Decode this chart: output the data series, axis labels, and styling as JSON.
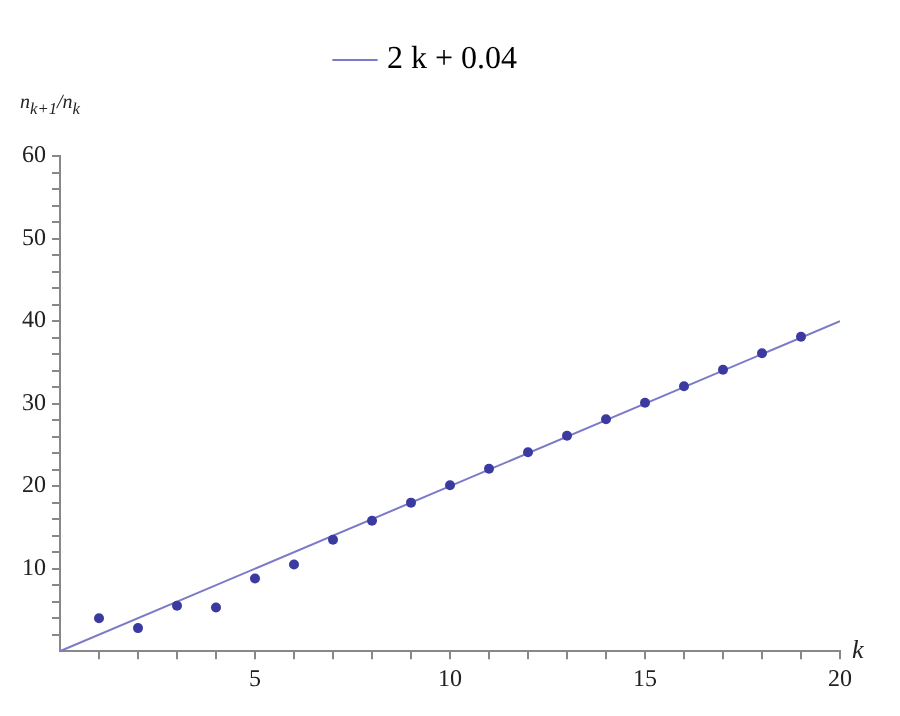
{
  "chart_data": {
    "type": "scatter",
    "xlabel": "k",
    "ylabel": "n$_{k+1}$/n$_{k}$",
    "xlim": [
      0,
      20
    ],
    "ylim": [
      0,
      60
    ],
    "xticks": [
      {
        "value": 1,
        "label": null
      },
      {
        "value": 2,
        "label": null
      },
      {
        "value": 3,
        "label": null
      },
      {
        "value": 4,
        "label": null
      },
      5,
      {
        "value": 6,
        "label": null
      },
      {
        "value": 7,
        "label": null
      },
      {
        "value": 8,
        "label": null
      },
      {
        "value": 9,
        "label": null
      },
      10,
      {
        "value": 11,
        "label": null
      },
      {
        "value": 12,
        "label": null
      },
      {
        "value": 13,
        "label": null
      },
      {
        "value": 14,
        "label": null
      },
      15,
      {
        "value": 16,
        "label": null
      },
      {
        "value": 17,
        "label": null
      },
      {
        "value": 18,
        "label": null
      },
      {
        "value": 19,
        "label": null
      },
      20
    ],
    "yticks": [
      {
        "value": 2,
        "label": null
      },
      {
        "value": 4,
        "label": null
      },
      {
        "value": 6,
        "label": null
      },
      {
        "value": 8,
        "label": null
      },
      10,
      {
        "value": 12,
        "label": null
      },
      {
        "value": 14,
        "label": null
      },
      {
        "value": 16,
        "label": null
      },
      {
        "value": 18,
        "label": null
      },
      20,
      {
        "value": 22,
        "label": null
      },
      {
        "value": 24,
        "label": null
      },
      {
        "value": 26,
        "label": null
      },
      {
        "value": 28,
        "label": null
      },
      30,
      {
        "value": 32,
        "label": null
      },
      {
        "value": 34,
        "label": null
      },
      {
        "value": 36,
        "label": null
      },
      {
        "value": 38,
        "label": null
      },
      40,
      {
        "value": 42,
        "label": null
      },
      {
        "value": 44,
        "label": null
      },
      {
        "value": 46,
        "label": null
      },
      {
        "value": 48,
        "label": null
      },
      50,
      {
        "value": 52,
        "label": null
      },
      {
        "value": 54,
        "label": null
      },
      {
        "value": 56,
        "label": null
      },
      {
        "value": 58,
        "label": null
      },
      60
    ],
    "grid": false,
    "legend": "top",
    "marker": "circle",
    "series": [
      {
        "type": "scatter",
        "color": "#3a3aa0",
        "x": [
          1,
          2,
          3,
          4,
          5,
          6,
          7,
          8,
          9,
          10,
          11,
          12,
          13,
          14,
          15,
          16,
          17,
          18,
          19
        ],
        "values": [
          4.0,
          2.8,
          5.5,
          5.3,
          8.8,
          10.5,
          13.5,
          15.8,
          18.0,
          20.1,
          22.1,
          24.1,
          26.1,
          28.1,
          30.1,
          32.1,
          34.1,
          36.1,
          38.1
        ]
      },
      {
        "type": "line",
        "name": "2 k + 0.04",
        "color": "#7a7ac8",
        "marker": "none",
        "x": [
          0,
          20
        ],
        "values": [
          0,
          40
        ]
      }
    ]
  }
}
